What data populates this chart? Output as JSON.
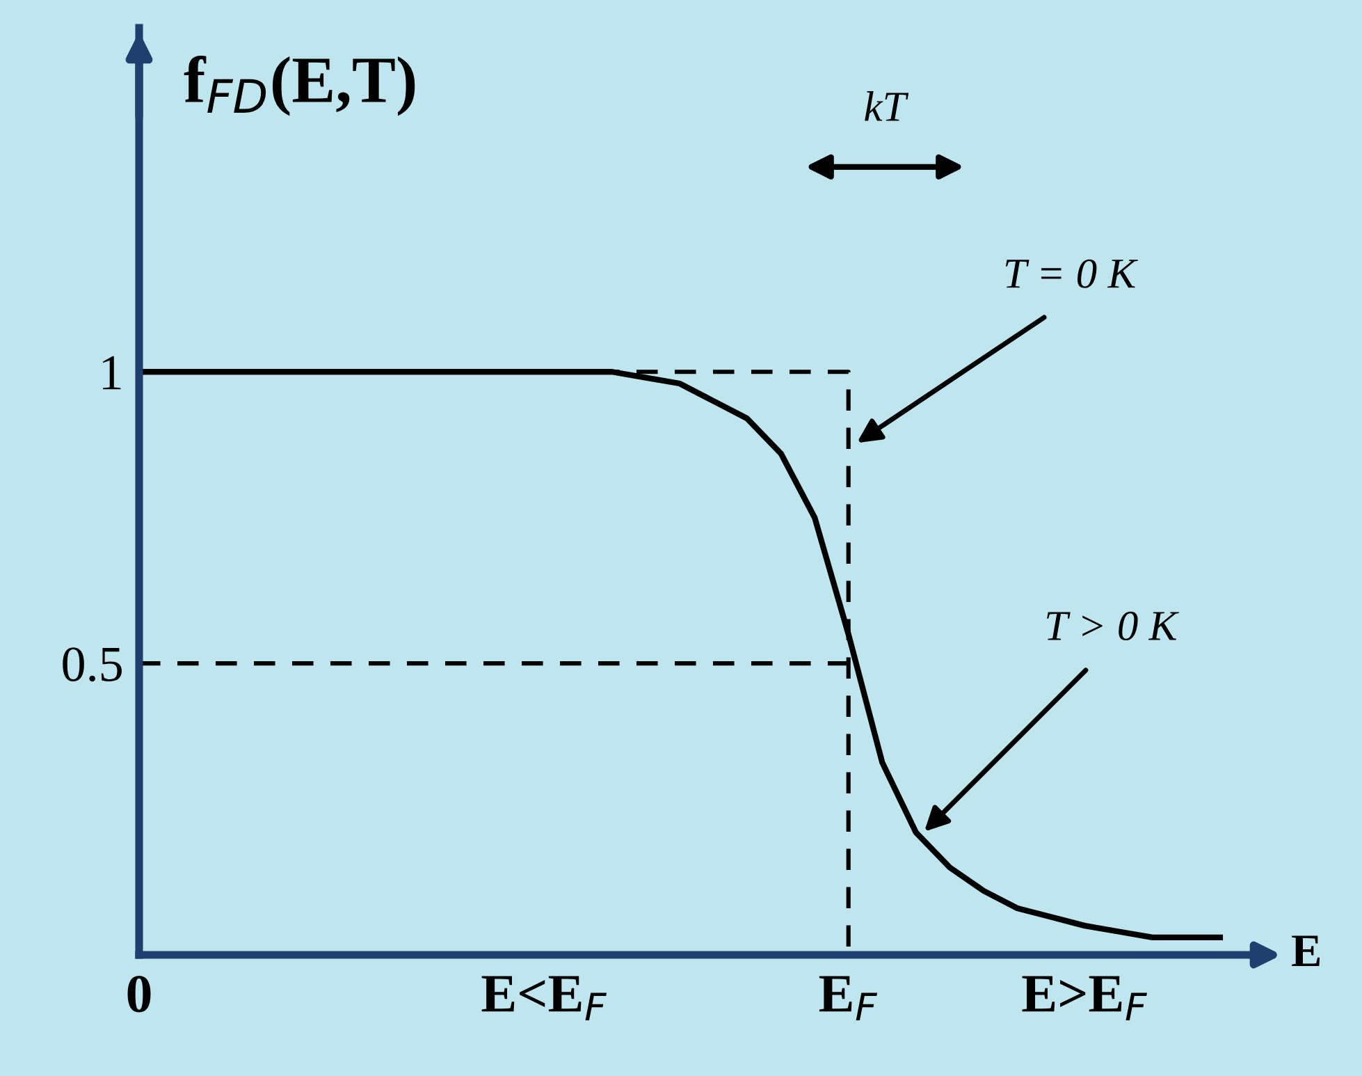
{
  "chart_data": {
    "type": "line",
    "ylabel": "f$_{FD}$(E,T)",
    "xlabel": "E",
    "ylim": [
      0,
      1.59
    ],
    "yticks": [
      {
        "value": 1,
        "label": "1"
      },
      {
        "value": 0.5,
        "label": "0.5"
      }
    ],
    "categories": [
      "0",
      null,
      null,
      null,
      null,
      null,
      null,
      null,
      null,
      null,
      null,
      null,
      "E<E$_{F}$",
      null,
      null,
      null,
      null,
      null,
      null,
      null,
      null,
      "E$_{F}$",
      null,
      null,
      null,
      null,
      null,
      null,
      "E>E$_{F}$",
      null,
      null,
      null,
      null
    ],
    "series": [
      {
        "color": "#000000",
        "line_style": "solid",
        "values": [
          1.0,
          1.0,
          1.0,
          1.0,
          1.0,
          1.0,
          1.0,
          1.0,
          1.0,
          1.0,
          1.0,
          1.0,
          1.0,
          1.0,
          1.0,
          0.99,
          0.98,
          0.95,
          0.92,
          0.86,
          0.75,
          0.55,
          0.33,
          0.21,
          0.15,
          0.11,
          0.08,
          0.065,
          0.05,
          0.04,
          0.03,
          0.03,
          0.03
        ]
      },
      {
        "type": "step",
        "color": "#000000",
        "line_style": "dashed",
        "values": [
          1,
          1,
          1,
          1,
          1,
          1,
          1,
          1,
          1,
          1,
          1,
          1,
          1,
          1,
          1,
          1,
          1,
          1,
          1,
          1,
          1,
          0,
          null,
          null,
          null,
          null,
          null,
          null,
          null,
          null,
          null,
          null,
          null
        ]
      },
      {
        "color": "#000000",
        "line_style": "dashed",
        "values": [
          0.5,
          0.5,
          0.5,
          0.5,
          0.5,
          0.5,
          0.5,
          0.5,
          0.5,
          0.5,
          0.5,
          0.5,
          0.5,
          0.5,
          0.5,
          0.5,
          0.5,
          0.5,
          0.5,
          0.5,
          0.5,
          0.5,
          null,
          null,
          null,
          null,
          null,
          null,
          null,
          null,
          null,
          null,
          null
        ]
      }
    ],
    "annotations": [
      "kT",
      "T = 0 K",
      "T > 0 K"
    ]
  }
}
